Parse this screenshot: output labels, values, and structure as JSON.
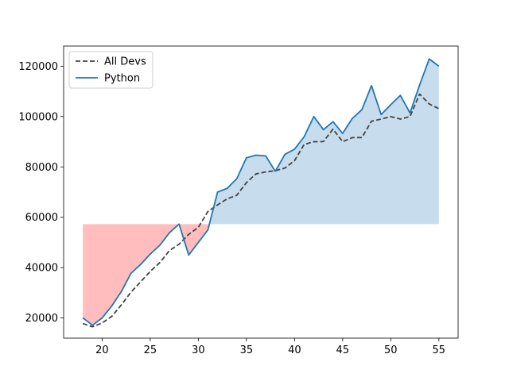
{
  "chart_data": {
    "type": "line",
    "title": "",
    "xlabel": "",
    "ylabel": "",
    "xlim": [
      16,
      57
    ],
    "ylim": [
      12000,
      128000
    ],
    "xticks": [
      20,
      25,
      30,
      35,
      40,
      45,
      50,
      55
    ],
    "yticks": [
      20000,
      40000,
      60000,
      80000,
      100000,
      120000
    ],
    "grid": false,
    "legend_position": "top-left",
    "fill_baseline": 57287,
    "fill_colors": {
      "below_baseline": "#ff9999",
      "above_baseline": "#a9c9e3"
    },
    "x": [
      18,
      19,
      20,
      21,
      22,
      23,
      24,
      25,
      26,
      27,
      28,
      29,
      30,
      31,
      32,
      33,
      34,
      35,
      36,
      37,
      38,
      39,
      40,
      41,
      42,
      43,
      44,
      45,
      46,
      47,
      48,
      49,
      50,
      51,
      52,
      53,
      54,
      55
    ],
    "series": [
      {
        "name": "All Devs",
        "color": "#444444",
        "line_style": "dashed",
        "values": [
          17784,
          16500,
          18012,
          20628,
          25206,
          30252,
          34368,
          38496,
          42000,
          46752,
          49320,
          53200,
          56000,
          62316,
          64928,
          67317,
          68748,
          73752,
          77232,
          78000,
          78508,
          79536,
          82488,
          88935,
          90000,
          90056,
          95000,
          90000,
          91633,
          91660,
          98150,
          98964,
          100000,
          98988,
          100000,
          108923,
          105000,
          103117
        ]
      },
      {
        "name": "Python",
        "color": "#1f77b4",
        "line_style": "solid",
        "values": [
          20046,
          17100,
          20000,
          24744,
          30500,
          37732,
          41247,
          45372,
          48876,
          53850,
          57287,
          45000,
          50000,
          55000,
          70000,
          71496,
          75370,
          83640,
          84666,
          84392,
          78254,
          85000,
          87038,
          91991,
          100000,
          94796,
          97962,
          93302,
          99240,
          102736,
          112285,
          100771,
          104708,
          108423,
          101407,
          112542,
          122870,
          120000
        ]
      }
    ]
  }
}
